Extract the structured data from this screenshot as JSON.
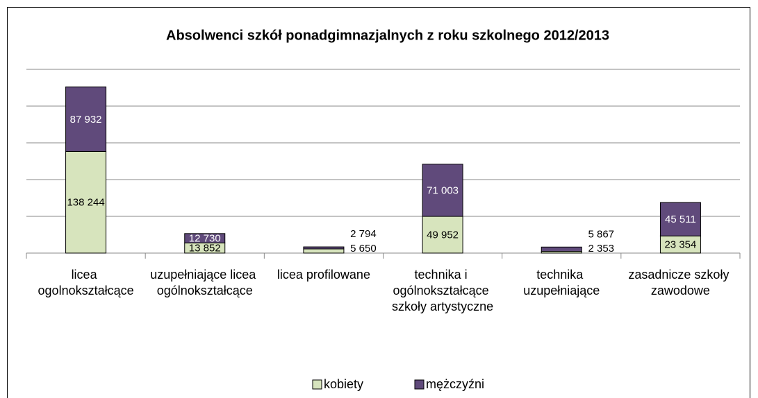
{
  "chart_data": {
    "type": "stacked_bar",
    "title": "Absolwenci szkół ponadgimnazjalnych z roku szkolnego 2012/2013",
    "categories": [
      "licea ogolnokształcące",
      "uzupełniające licea ogólnokształcące",
      "licea profilowane",
      "technika i ogólnokształcące szkoły artystyczne",
      "technika uzupełniające",
      "zasadnicze szkoły zawodowe"
    ],
    "series": [
      {
        "name": "kobiety",
        "color": "#d7e4bd",
        "values": [
          138244,
          13852,
          5650,
          49952,
          2353,
          23354
        ],
        "value_labels": [
          "138 244",
          "13 852",
          "5 650",
          "49 952",
          "2 353",
          "23 354"
        ]
      },
      {
        "name": "mężczyźni",
        "color": "#604a7b",
        "values": [
          87932,
          12730,
          2794,
          71003,
          5867,
          45511
        ],
        "value_labels": [
          "87 932",
          "12 730",
          "2 794",
          "71 003",
          "5 867",
          "45 511"
        ]
      }
    ],
    "ylim": [
      0,
      250000
    ],
    "yticks": [
      0,
      50000,
      100000,
      150000,
      200000,
      250000
    ],
    "grid": true,
    "legend": "bottom"
  }
}
